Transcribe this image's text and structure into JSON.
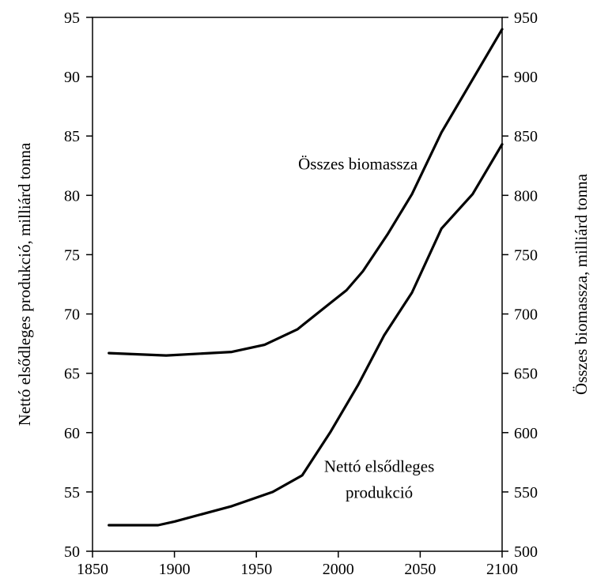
{
  "chart_data": {
    "type": "line",
    "x_axis": {
      "min": 1850,
      "max": 2100,
      "ticks": [
        1850,
        1900,
        1950,
        2000,
        2050,
        2100
      ]
    },
    "y_left": {
      "label": "Nettó elsődleges produkció, milliárd tonna",
      "min": 50,
      "max": 95,
      "ticks": [
        50,
        55,
        60,
        65,
        70,
        75,
        80,
        85,
        90,
        95
      ]
    },
    "y_right": {
      "label": "Összes biomassza, milliárd tonna",
      "min": 500,
      "max": 950,
      "ticks": [
        500,
        550,
        600,
        650,
        700,
        750,
        800,
        850,
        900,
        950
      ]
    },
    "grid": false,
    "legend": "none",
    "series": [
      {
        "name": "Összes biomassza",
        "axis": "right",
        "color": "#000000",
        "points": [
          [
            1860,
            667
          ],
          [
            1895,
            665
          ],
          [
            1935,
            668
          ],
          [
            1955,
            674
          ],
          [
            1975,
            687
          ],
          [
            1995,
            709
          ],
          [
            2005,
            720
          ],
          [
            2015,
            736
          ],
          [
            2030,
            767
          ],
          [
            2045,
            801
          ],
          [
            2063,
            853
          ],
          [
            2080,
            893
          ],
          [
            2100,
            940
          ]
        ]
      },
      {
        "name": "Nettó elsődleges produkció",
        "axis": "left",
        "color": "#000000",
        "points": [
          [
            1860,
            52.2
          ],
          [
            1890,
            52.2
          ],
          [
            1900,
            52.5
          ],
          [
            1935,
            53.8
          ],
          [
            1960,
            55.0
          ],
          [
            1978,
            56.4
          ],
          [
            1995,
            60.0
          ],
          [
            2012,
            64.0
          ],
          [
            2028,
            68.2
          ],
          [
            2045,
            71.8
          ],
          [
            2063,
            77.2
          ],
          [
            2082,
            80.1
          ],
          [
            2100,
            84.3
          ]
        ]
      }
    ],
    "annotations": [
      {
        "text": "Összes biomassza",
        "x": 2012,
        "y_right": 822
      },
      {
        "text": "Nettó elsődleges",
        "x": 2025,
        "y_left": 56.7
      },
      {
        "text": "produkció",
        "x": 2025,
        "y_left": 54.5
      }
    ]
  }
}
